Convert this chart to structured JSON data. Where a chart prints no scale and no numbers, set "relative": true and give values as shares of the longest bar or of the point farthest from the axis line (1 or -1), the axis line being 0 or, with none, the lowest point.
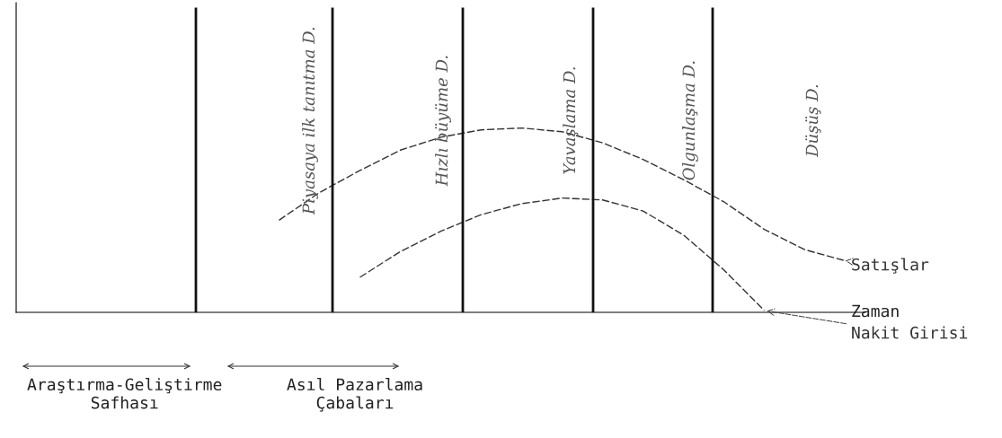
{
  "chart_data": {
    "type": "line",
    "relative": true,
    "xlabel": "Zaman",
    "marker": "none",
    "line_style": "dashed",
    "categories": [
      null,
      null,
      null,
      null,
      null,
      null,
      null,
      null,
      null,
      null,
      null,
      null,
      null,
      null,
      null,
      null,
      null,
      null,
      null,
      null,
      null
    ],
    "series": [
      {
        "name": "Satışlar",
        "color": "#333333",
        "values": [
          null,
          null,
          null,
          null,
          null,
          null,
          0.5,
          0.65,
          0.77,
          0.88,
          0.95,
          0.99,
          1.0,
          0.98,
          0.92,
          0.83,
          0.72,
          0.6,
          0.45,
          0.34,
          0.28
        ]
      },
      {
        "name": "Nakit Girisi",
        "color": "#333333",
        "values": [
          null,
          null,
          null,
          null,
          null,
          null,
          null,
          null,
          0.19,
          0.33,
          0.44,
          0.53,
          0.59,
          0.62,
          0.61,
          0.55,
          0.42,
          0.23,
          0.01,
          null,
          null
        ]
      }
    ],
    "annotations": [
      "Piyasaya ilk tanıtma D.",
      "Hızlı büyüme D.",
      "Yavaşlama D.",
      "Olgunlaşma D.",
      "Düşüş D.",
      "Araştırma-Geliştirme\nSafhası",
      "Asıl Pazarlama\nÇabaları"
    ]
  }
}
